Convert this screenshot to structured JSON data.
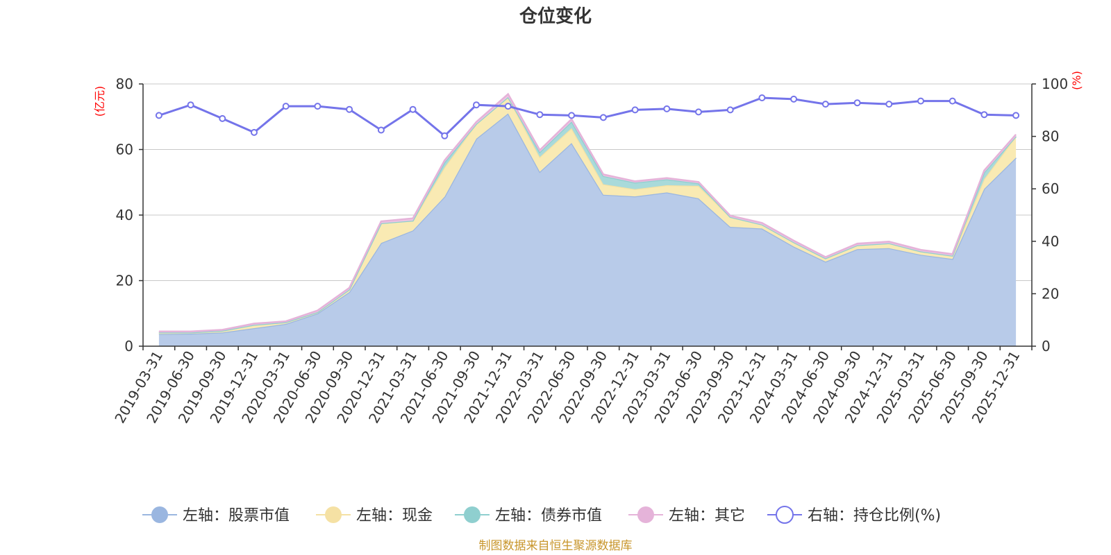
{
  "chart_data": {
    "type": "area",
    "title": "仓位变化",
    "left_unit": "(亿元)",
    "right_unit": "(%)",
    "left_ylim": [
      0,
      80
    ],
    "left_ticks": [
      "0",
      "20",
      "40",
      "60",
      "80"
    ],
    "right_ylim": [
      0,
      100
    ],
    "right_ticks": [
      "0",
      "20",
      "40",
      "60",
      "80",
      "100"
    ],
    "categories": [
      "2019-03-31",
      "2019-06-30",
      "2019-09-30",
      "2019-12-31",
      "2020-03-31",
      "2020-06-30",
      "2020-09-30",
      "2020-12-31",
      "2021-03-31",
      "2021-06-30",
      "2021-09-30",
      "2021-12-31",
      "2022-03-31",
      "2022-06-30",
      "2022-09-30",
      "2022-12-31",
      "2023-03-31",
      "2023-06-30",
      "2023-09-30",
      "2023-12-31",
      "2024-03-31",
      "2024-06-30",
      "2024-09-30",
      "2024-12-31",
      "2025-03-31",
      "2025-06-30",
      "2025-09-30",
      "2025-12-31"
    ],
    "series": [
      {
        "name": "左轴：股票市值",
        "axis": "left",
        "type": "area",
        "color": "#9ab6e0",
        "fill": "#b8cbe9",
        "values": [
          3.7,
          3.8,
          4.2,
          5.5,
          6.8,
          10.0,
          16.5,
          31.5,
          35.3,
          45.6,
          63.3,
          71.0,
          53.2,
          62.0,
          46.2,
          45.7,
          46.9,
          45.1,
          36.4,
          35.9,
          30.4,
          25.8,
          29.6,
          29.9,
          27.9,
          26.6,
          48.0,
          57.5
        ]
      },
      {
        "name": "左轴：现金",
        "axis": "left",
        "type": "area",
        "color": "#f5e1a4",
        "fill": "#f9eab3",
        "values": [
          0.5,
          0.4,
          0.5,
          1.0,
          0.5,
          0.4,
          0.8,
          6.0,
          3.0,
          9.0,
          4.5,
          5.0,
          4.5,
          4.5,
          3.2,
          2.2,
          2.2,
          3.8,
          3.0,
          1.2,
          1.3,
          1.0,
          1.2,
          1.5,
          1.0,
          1.0,
          3.0,
          6.5
        ]
      },
      {
        "name": "左轴：债券市值",
        "axis": "left",
        "type": "area",
        "color": "#8fcfcf",
        "fill": "#a9dada",
        "values": [
          0,
          0,
          0,
          0,
          0,
          0,
          0,
          0,
          0,
          1.5,
          0,
          0,
          1.5,
          2.0,
          2.5,
          2.0,
          1.8,
          0.8,
          0,
          0,
          0,
          0,
          0,
          0,
          0,
          0,
          2.0,
          0
        ]
      },
      {
        "name": "左轴：其它",
        "axis": "left",
        "type": "area",
        "color": "#e5b3d9",
        "fill": "#eec5e3",
        "values": [
          0.3,
          0.3,
          0.3,
          0.4,
          0.3,
          0.5,
          0.5,
          0.6,
          0.7,
          0.6,
          0.6,
          0.9,
          0.6,
          0.8,
          0.5,
          0.4,
          0.4,
          0.4,
          0.4,
          0.5,
          0.5,
          0.4,
          0.5,
          0.5,
          0.5,
          0.5,
          0.6,
          0.6
        ]
      },
      {
        "name": "右轴：持仓比例(%)",
        "axis": "right",
        "type": "line",
        "color": "#7474ea",
        "values": [
          88.0,
          92.0,
          86.8,
          81.5,
          91.5,
          91.5,
          90.3,
          82.4,
          90.3,
          80.2,
          92.0,
          91.5,
          88.3,
          88.0,
          87.2,
          90.1,
          90.5,
          89.3,
          90.1,
          94.7,
          94.2,
          92.3,
          92.8,
          92.3,
          93.5,
          93.5,
          88.3,
          88.0
        ]
      }
    ],
    "legend_position": "bottom",
    "source_note": "制图数据来自恒生聚源数据库"
  }
}
